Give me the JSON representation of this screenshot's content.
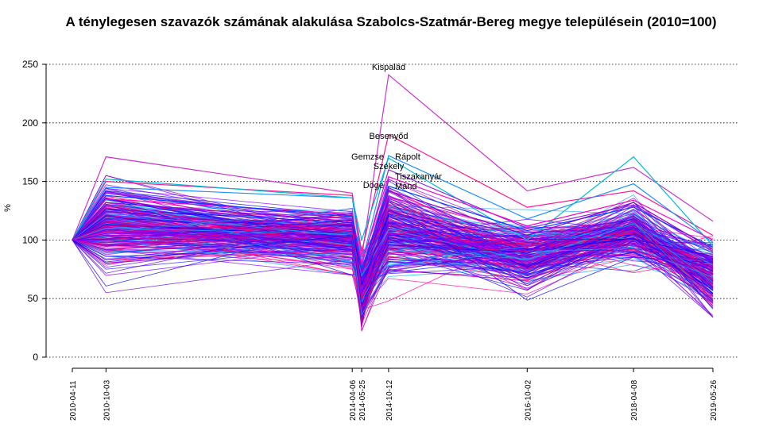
{
  "chart_data": {
    "type": "line",
    "title": "A ténylegesen szavazók számának alakulása Szabolcs-Szatmár-Bereg megye településein (2010=100)",
    "ylabel": "%",
    "xlabel": "",
    "ylim": [
      0,
      250
    ],
    "yticks": [
      "0",
      "50",
      "100",
      "150",
      "200",
      "250"
    ],
    "x": [
      "2010-04-11",
      "2010-10-03",
      "2014-04-06",
      "2014-05-25",
      "2014-10-12",
      "2016-10-02",
      "2018-04-08",
      "2019-05-26"
    ],
    "grid": "horizontal dotted",
    "palette": [
      "#0000ff",
      "#1e1eff",
      "#3a00ee",
      "#6a00dd",
      "#9a00cc",
      "#ff00aa",
      "#ff0066",
      "#dd0099",
      "#00bbee",
      "#22aaff",
      "#5500ff",
      "#8800ff"
    ],
    "annotated_series": [
      {
        "name": "Kispalád",
        "values": [
          100,
          171,
          140,
          85,
          241,
          142,
          162,
          116
        ],
        "color": "#cc33cc"
      },
      {
        "name": "Besenyőd",
        "values": [
          100,
          150,
          138,
          90,
          190,
          128,
          142,
          104
        ],
        "color": "#ff1493"
      },
      {
        "name": "Rápolt",
        "values": [
          100,
          145,
          136,
          80,
          172,
          118,
          148,
          98
        ],
        "color": "#1e90ff"
      },
      {
        "name": "Gemzse",
        "values": [
          100,
          152,
          136,
          100,
          170,
          100,
          171,
          95
        ],
        "color": "#00bcd4"
      },
      {
        "name": "Székely",
        "values": [
          100,
          140,
          118,
          78,
          160,
          110,
          130,
          90
        ],
        "color": "#8a2be2"
      },
      {
        "name": "Tiszakanyár",
        "values": [
          100,
          135,
          122,
          80,
          154,
          112,
          134,
          100
        ],
        "color": "#ff00cc"
      },
      {
        "name": "Döge",
        "values": [
          100,
          138,
          120,
          75,
          146,
          108,
          128,
          94
        ],
        "color": "#0044ff"
      },
      {
        "name": "Mánd",
        "values": [
          100,
          132,
          116,
          72,
          142,
          104,
          132,
          92
        ],
        "color": "#9400d3"
      }
    ]
  }
}
